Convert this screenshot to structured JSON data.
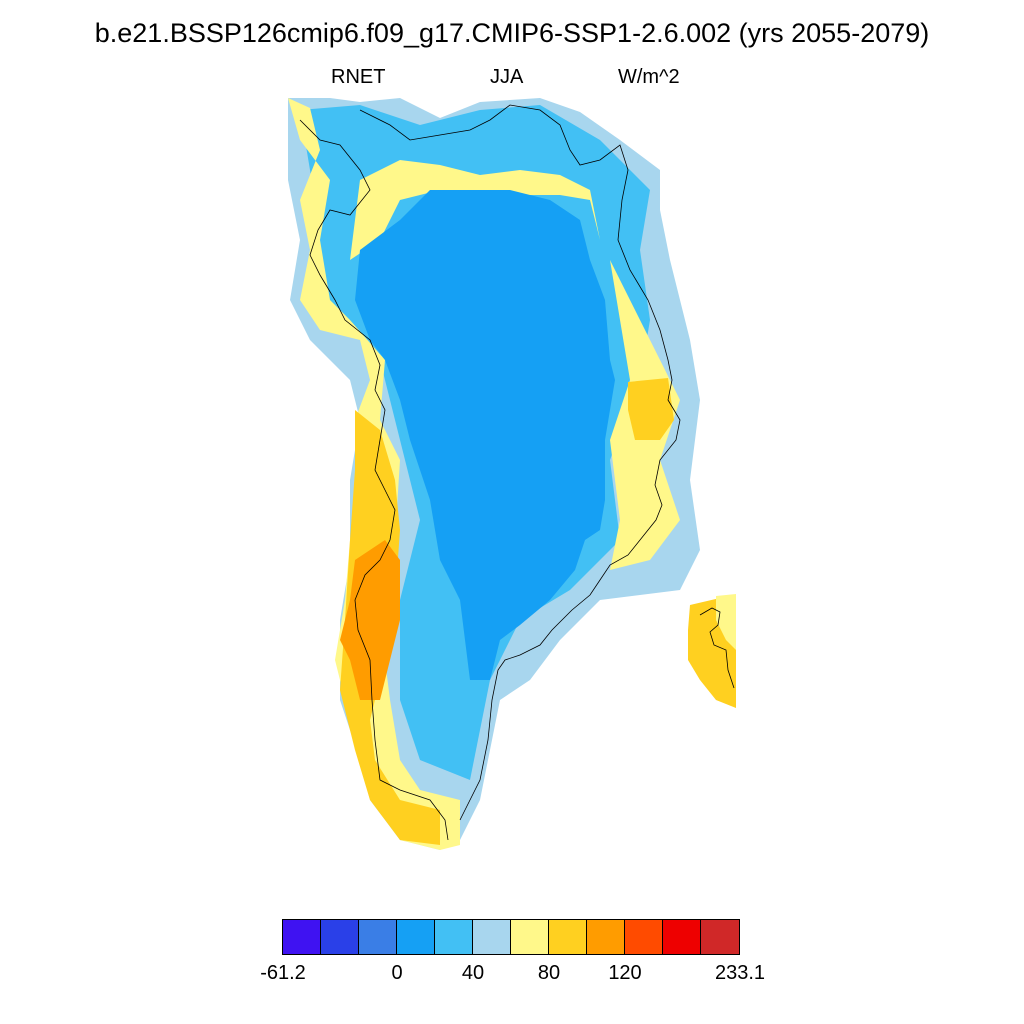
{
  "title": "b.e21.BSSP126cmip6.f09_g17.CMIP6-SSP1-2.6.002 (yrs 2055-2079)",
  "subtitle": {
    "left": "RNET",
    "center": "JJA",
    "right": "W/m^2"
  },
  "colorbar": {
    "colors": [
      "#3f12f2",
      "#2a40e8",
      "#3a7ee6",
      "#15a0f4",
      "#42c0f4",
      "#a8d6ee",
      "#fff88a",
      "#ffd020",
      "#ff9c00",
      "#ff4b00",
      "#ee0000",
      "#d02828"
    ],
    "labels": [
      "-61.2",
      "0",
      "40",
      "80",
      "120",
      "233.1"
    ]
  },
  "map": {
    "region": "Greenland",
    "colors": {
      "deep_blue": "#15a0f4",
      "blue": "#42c0f4",
      "light_blue": "#a8d6ee",
      "yellow": "#fff88a",
      "gold": "#ffd020",
      "orange": "#ff9c00",
      "red_orange": "#ff4b00"
    }
  }
}
